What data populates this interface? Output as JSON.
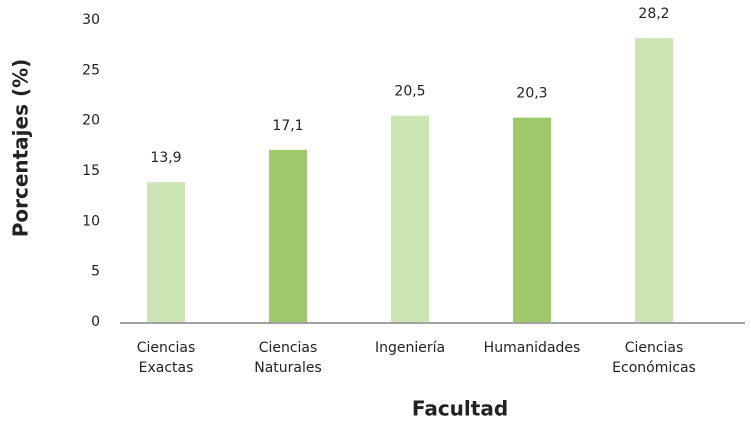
{
  "chart_data": {
    "type": "bar",
    "xlabel": "Facultad",
    "ylabel": "Porcentajes (%)",
    "categories": [
      "Ciencias Exactas",
      "Ciencias Naturales",
      "Ingeniería",
      "Humanidades",
      "Ciencias Económicas"
    ],
    "values": [
      13.9,
      17.1,
      20.5,
      20.3,
      28.2
    ],
    "value_labels": [
      "13,9",
      "17,1",
      "20,5",
      "20,3",
      "28,2"
    ],
    "colors": [
      "#cce5b5",
      "#9dc96a",
      "#cce5b5",
      "#9dc96a",
      "#cce5b5"
    ],
    "ylim": [
      0,
      30
    ],
    "yticks": [
      0,
      5,
      10,
      15,
      20,
      25,
      30
    ],
    "grid": false
  }
}
